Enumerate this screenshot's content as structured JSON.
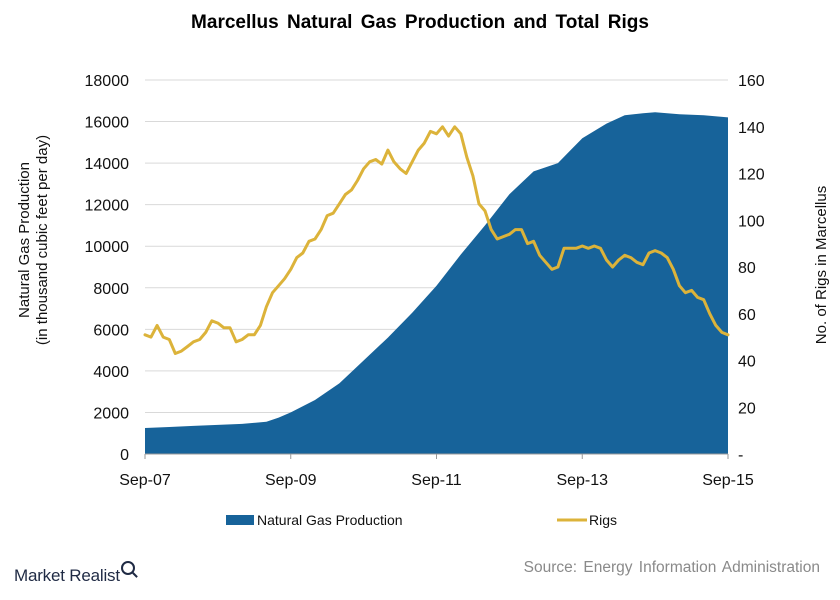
{
  "chart_data": {
    "type": "area",
    "title": "Marcellus  Natural Gas Production and Total Rigs",
    "ylabel_left": [
      "Natural Gas Production",
      "(in thousand cubic feet per day)"
    ],
    "ylabel_right": "No. of Rigs in Marcellus",
    "xlabel": "",
    "x_tick_labels": [
      "Sep-07",
      "Sep-09",
      "Sep-11",
      "Sep-13",
      "Sep-15"
    ],
    "x_range": [
      2007.667,
      2015.667
    ],
    "ylim_left": [
      0,
      18000
    ],
    "ylim_right": [
      0,
      160
    ],
    "y_ticks_left": [
      "0",
      "2000",
      "4000",
      "6000",
      "8000",
      "10000",
      "12000",
      "14000",
      "16000",
      "18000"
    ],
    "y_ticks_right": [
      "-",
      "20",
      "40",
      "60",
      "80",
      "100",
      "120",
      "140",
      "160"
    ],
    "legend_position": "bottom",
    "grid": "horizontal",
    "series": [
      {
        "name": "Natural Gas Production",
        "kind": "area",
        "axis": "left",
        "color": "#17639a",
        "x": [
          2007.667,
          2008.0,
          2008.333,
          2008.667,
          2009.0,
          2009.333,
          2009.5,
          2009.667,
          2010.0,
          2010.333,
          2010.667,
          2011.0,
          2011.333,
          2011.667,
          2012.0,
          2012.333,
          2012.667,
          2013.0,
          2013.333,
          2013.5,
          2013.667,
          2014.0,
          2014.25,
          2014.5,
          2014.667,
          2014.833,
          2015.0,
          2015.333,
          2015.667
        ],
        "values": [
          1250,
          1300,
          1350,
          1400,
          1450,
          1550,
          1750,
          2000,
          2600,
          3400,
          4500,
          5600,
          6800,
          8100,
          9600,
          11000,
          12500,
          13600,
          14000,
          14600,
          15200,
          15900,
          16300,
          16400,
          16450,
          16400,
          16350,
          16300,
          16200
        ]
      },
      {
        "name": "Rigs",
        "kind": "line",
        "axis": "right",
        "color": "#dcb33a",
        "x": [
          2007.667,
          2007.75,
          2007.833,
          2007.917,
          2008.0,
          2008.083,
          2008.167,
          2008.25,
          2008.333,
          2008.417,
          2008.5,
          2008.583,
          2008.667,
          2008.75,
          2008.833,
          2008.917,
          2009.0,
          2009.083,
          2009.167,
          2009.25,
          2009.333,
          2009.417,
          2009.5,
          2009.583,
          2009.667,
          2009.75,
          2009.833,
          2009.917,
          2010.0,
          2010.083,
          2010.167,
          2010.25,
          2010.333,
          2010.417,
          2010.5,
          2010.583,
          2010.667,
          2010.75,
          2010.833,
          2010.917,
          2011.0,
          2011.083,
          2011.167,
          2011.25,
          2011.333,
          2011.417,
          2011.5,
          2011.583,
          2011.667,
          2011.75,
          2011.833,
          2011.917,
          2012.0,
          2012.083,
          2012.167,
          2012.25,
          2012.333,
          2012.417,
          2012.5,
          2012.583,
          2012.667,
          2012.75,
          2012.833,
          2012.917,
          2013.0,
          2013.083,
          2013.167,
          2013.25,
          2013.333,
          2013.417,
          2013.5,
          2013.583,
          2013.667,
          2013.75,
          2013.833,
          2013.917,
          2014.0,
          2014.083,
          2014.167,
          2014.25,
          2014.333,
          2014.417,
          2014.5,
          2014.583,
          2014.667,
          2014.75,
          2014.833,
          2014.917,
          2015.0,
          2015.083,
          2015.167,
          2015.25,
          2015.333,
          2015.417,
          2015.5,
          2015.583,
          2015.667
        ],
        "values": [
          51,
          50,
          55,
          50,
          49,
          43,
          44,
          46,
          48,
          49,
          52,
          57,
          56,
          54,
          54,
          48,
          49,
          51,
          51,
          55,
          63,
          69,
          72,
          75,
          79,
          84,
          86,
          91,
          92,
          96,
          102,
          103,
          107,
          111,
          113,
          117,
          122,
          125,
          126,
          124,
          130,
          125,
          122,
          120,
          125,
          130,
          133,
          138,
          137,
          140,
          136,
          140,
          137,
          127,
          119,
          107,
          104,
          96,
          92,
          93,
          94,
          96,
          96,
          90,
          91,
          85,
          82,
          79,
          80,
          88,
          88,
          88,
          89,
          88,
          89,
          88,
          83,
          80,
          83,
          85,
          84,
          82,
          81,
          86,
          87,
          86,
          84,
          79,
          72,
          69,
          70,
          67,
          66,
          60,
          55,
          52,
          51
        ]
      }
    ]
  },
  "footer": {
    "source": "Source:  Energy Information  Administration",
    "brand": "Market Realist"
  }
}
